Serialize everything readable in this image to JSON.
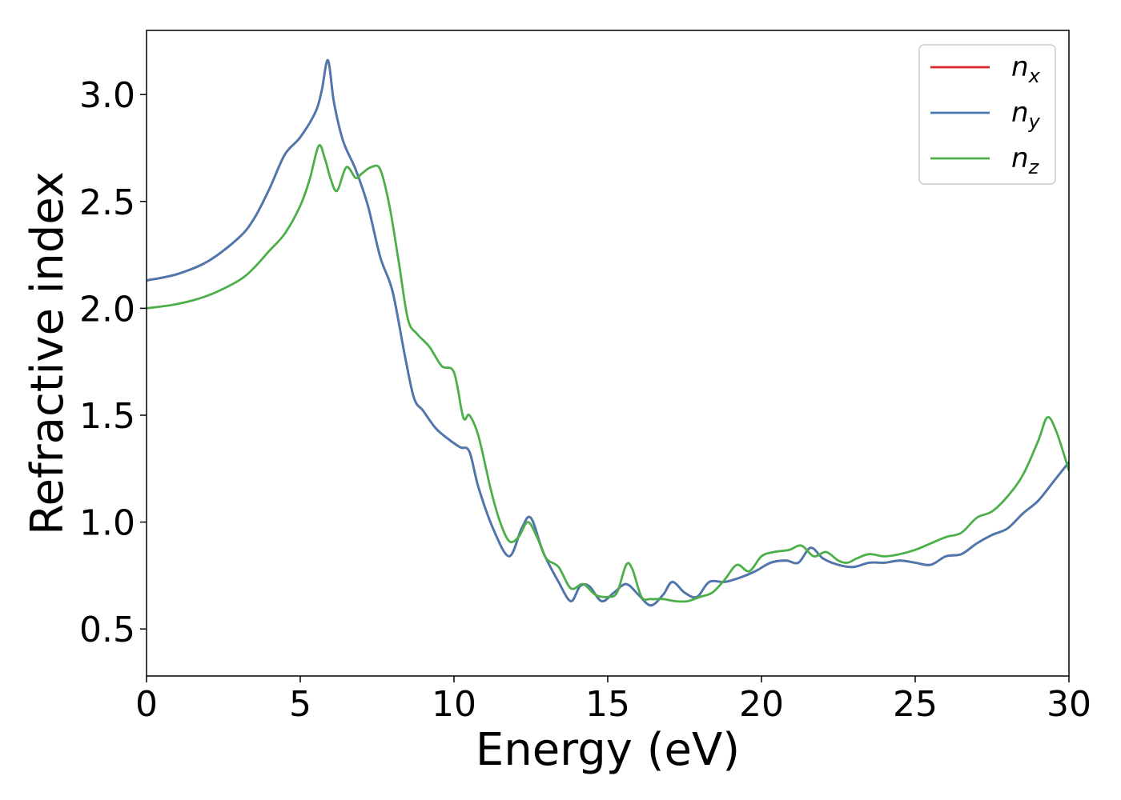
{
  "chart_data": {
    "type": "line",
    "title": "",
    "xlabel": "Energy (eV)",
    "ylabel": "Refractive index",
    "xlim": [
      0,
      30
    ],
    "ylim": [
      0.28,
      3.3
    ],
    "xticks": [
      0,
      5,
      10,
      15,
      20,
      25,
      30
    ],
    "yticks": [
      0.5,
      1.0,
      1.5,
      2.0,
      2.5,
      3.0
    ],
    "xtick_labels": [
      "0",
      "5",
      "10",
      "15",
      "20",
      "25",
      "30"
    ],
    "ytick_labels": [
      "0.5",
      "1.0",
      "1.5",
      "2.0",
      "2.5",
      "3.0"
    ],
    "grid": false,
    "legend_position": "top-right",
    "series": [
      {
        "name": "n_x",
        "symbol": "n",
        "subscript": "x",
        "color": "#d62728",
        "x": [
          0,
          1,
          2,
          3,
          3.5,
          4,
          4.5,
          5,
          5.5,
          5.7,
          5.9,
          6.1,
          6.4,
          6.8,
          7.2,
          7.6,
          8.0,
          8.4,
          8.7,
          9.0,
          9.4,
          9.8,
          10.2,
          10.5,
          10.8,
          11.3,
          11.8,
          12.2,
          12.5,
          12.9,
          13.4,
          13.8,
          14.1,
          14.4,
          14.8,
          15.2,
          15.6,
          16.0,
          16.4,
          16.8,
          17.1,
          17.5,
          17.9,
          18.3,
          18.8,
          19.3,
          19.8,
          20.3,
          20.8,
          21.2,
          21.6,
          22.0,
          22.5,
          23.0,
          23.5,
          24.0,
          24.5,
          25.0,
          25.5,
          26.0,
          26.5,
          27.0,
          27.5,
          28.0,
          28.5,
          29.0,
          29.5,
          30.0
        ],
        "y": [
          2.13,
          2.16,
          2.22,
          2.33,
          2.42,
          2.56,
          2.72,
          2.8,
          2.92,
          3.02,
          3.16,
          2.96,
          2.78,
          2.65,
          2.48,
          2.24,
          2.08,
          1.78,
          1.58,
          1.52,
          1.44,
          1.39,
          1.35,
          1.33,
          1.16,
          0.96,
          0.84,
          0.97,
          1.02,
          0.86,
          0.72,
          0.63,
          0.7,
          0.7,
          0.63,
          0.67,
          0.71,
          0.66,
          0.61,
          0.66,
          0.72,
          0.67,
          0.65,
          0.72,
          0.72,
          0.74,
          0.77,
          0.81,
          0.82,
          0.81,
          0.88,
          0.83,
          0.8,
          0.79,
          0.81,
          0.81,
          0.82,
          0.81,
          0.8,
          0.84,
          0.85,
          0.9,
          0.94,
          0.97,
          1.04,
          1.1,
          1.19,
          1.28
        ]
      },
      {
        "name": "n_y",
        "symbol": "n",
        "subscript": "y",
        "color": "#4a78b0",
        "x": [
          0,
          1,
          2,
          3,
          3.5,
          4,
          4.5,
          5,
          5.5,
          5.7,
          5.9,
          6.1,
          6.4,
          6.8,
          7.2,
          7.6,
          8.0,
          8.4,
          8.7,
          9.0,
          9.4,
          9.8,
          10.2,
          10.5,
          10.8,
          11.3,
          11.8,
          12.2,
          12.5,
          12.9,
          13.4,
          13.8,
          14.1,
          14.4,
          14.8,
          15.2,
          15.6,
          16.0,
          16.4,
          16.8,
          17.1,
          17.5,
          17.9,
          18.3,
          18.8,
          19.3,
          19.8,
          20.3,
          20.8,
          21.2,
          21.6,
          22.0,
          22.5,
          23.0,
          23.5,
          24.0,
          24.5,
          25.0,
          25.5,
          26.0,
          26.5,
          27.0,
          27.5,
          28.0,
          28.5,
          29.0,
          29.5,
          30.0
        ],
        "y": [
          2.13,
          2.16,
          2.22,
          2.33,
          2.42,
          2.56,
          2.72,
          2.8,
          2.92,
          3.02,
          3.16,
          2.96,
          2.78,
          2.65,
          2.48,
          2.24,
          2.08,
          1.78,
          1.58,
          1.52,
          1.44,
          1.39,
          1.35,
          1.33,
          1.16,
          0.96,
          0.84,
          0.97,
          1.02,
          0.86,
          0.72,
          0.63,
          0.7,
          0.7,
          0.63,
          0.67,
          0.71,
          0.66,
          0.61,
          0.66,
          0.72,
          0.67,
          0.65,
          0.72,
          0.72,
          0.74,
          0.77,
          0.81,
          0.82,
          0.81,
          0.88,
          0.83,
          0.8,
          0.79,
          0.81,
          0.81,
          0.82,
          0.81,
          0.8,
          0.84,
          0.85,
          0.9,
          0.94,
          0.97,
          1.04,
          1.1,
          1.19,
          1.28
        ]
      },
      {
        "name": "n_z",
        "symbol": "n",
        "subscript": "z",
        "color": "#4daf4a",
        "x": [
          0,
          1,
          2,
          3,
          3.5,
          4,
          4.5,
          5,
          5.3,
          5.6,
          5.8,
          6.0,
          6.2,
          6.5,
          6.8,
          7.0,
          7.3,
          7.6,
          7.9,
          8.2,
          8.5,
          8.8,
          9.2,
          9.6,
          10.0,
          10.3,
          10.5,
          10.8,
          11.2,
          11.5,
          11.8,
          12.1,
          12.4,
          12.7,
          13.0,
          13.4,
          13.8,
          14.2,
          14.6,
          15.0,
          15.3,
          15.6,
          15.8,
          16.1,
          16.4,
          16.8,
          17.2,
          17.6,
          18.0,
          18.4,
          18.8,
          19.2,
          19.6,
          20.0,
          20.4,
          20.9,
          21.3,
          21.7,
          22.1,
          22.5,
          22.8,
          23.1,
          23.5,
          24.0,
          24.5,
          25.0,
          25.5,
          26.0,
          26.5,
          27.0,
          27.5,
          28.0,
          28.5,
          29.0,
          29.3,
          29.6,
          30.0
        ],
        "y": [
          2.0,
          2.02,
          2.06,
          2.13,
          2.19,
          2.27,
          2.35,
          2.48,
          2.6,
          2.76,
          2.7,
          2.6,
          2.55,
          2.66,
          2.61,
          2.63,
          2.66,
          2.65,
          2.48,
          2.22,
          1.95,
          1.88,
          1.82,
          1.73,
          1.7,
          1.49,
          1.5,
          1.4,
          1.15,
          1.0,
          0.91,
          0.93,
          1.0,
          0.93,
          0.83,
          0.79,
          0.69,
          0.71,
          0.66,
          0.65,
          0.67,
          0.8,
          0.78,
          0.65,
          0.64,
          0.64,
          0.63,
          0.63,
          0.65,
          0.67,
          0.73,
          0.8,
          0.77,
          0.84,
          0.86,
          0.87,
          0.89,
          0.84,
          0.86,
          0.82,
          0.81,
          0.83,
          0.85,
          0.84,
          0.85,
          0.87,
          0.9,
          0.93,
          0.95,
          1.02,
          1.05,
          1.12,
          1.22,
          1.38,
          1.49,
          1.42,
          1.24
        ]
      }
    ]
  }
}
